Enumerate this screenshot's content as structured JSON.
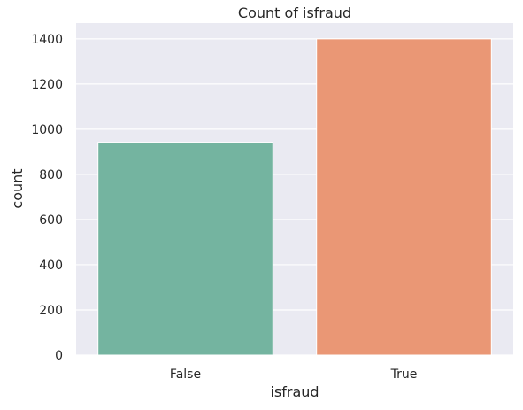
{
  "chart_data": {
    "type": "bar",
    "title": "Count of isfraud",
    "xlabel": "isfraud",
    "ylabel": "count",
    "categories": [
      "False",
      "True"
    ],
    "values": [
      942,
      1400
    ],
    "colors": [
      "#74b4a0",
      "#ea9775"
    ],
    "ylim": [
      0,
      1470
    ],
    "yticks": [
      0,
      200,
      400,
      600,
      800,
      1000,
      1200,
      1400
    ],
    "grid": true,
    "plot_background": "#eaeaf2",
    "grid_color": "#ffffff"
  }
}
